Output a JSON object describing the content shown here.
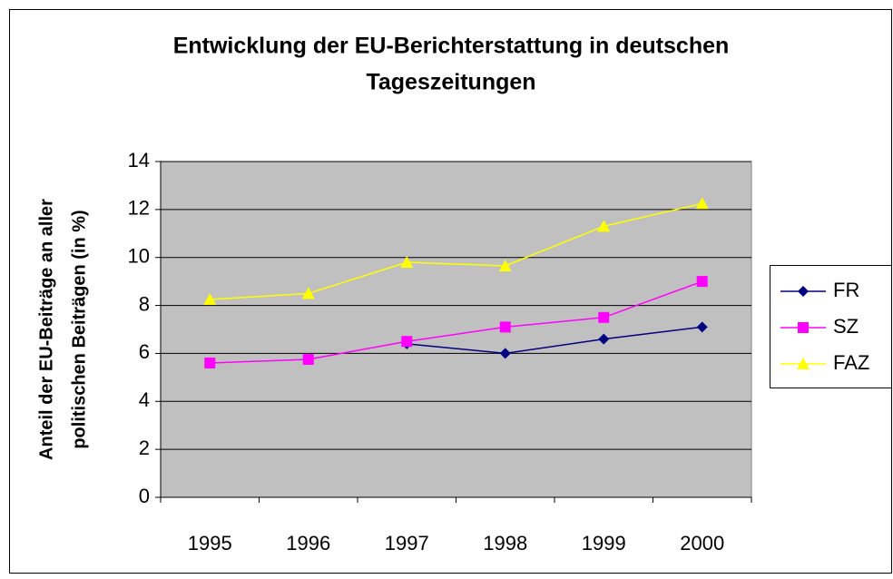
{
  "chart_data": {
    "type": "line",
    "title": [
      "Entwicklung der EU-Berichterstattung in deutschen",
      "Tageszeitungen"
    ],
    "y_label": [
      "Anteil der EU-Beiträge an aller",
      "politischen Beiträgen (in %)"
    ],
    "categories": [
      "1995",
      "1996",
      "1997",
      "1998",
      "1999",
      "2000"
    ],
    "series": [
      {
        "name": "FR",
        "color": "#000080",
        "marker": "diamond",
        "values": [
          null,
          null,
          6.4,
          6.0,
          6.6,
          7.1
        ]
      },
      {
        "name": "SZ",
        "color": "#FF00FF",
        "marker": "square",
        "values": [
          5.6,
          5.75,
          6.5,
          7.1,
          7.5,
          9.0
        ]
      },
      {
        "name": "FAZ",
        "color": "#FFFF00",
        "marker": "triangle",
        "values": [
          8.25,
          8.5,
          9.8,
          9.65,
          11.3,
          12.25
        ]
      }
    ],
    "ylim": [
      0,
      14
    ],
    "yticks": [
      0,
      2,
      4,
      6,
      8,
      10,
      12,
      14
    ],
    "grid": true,
    "legend": "right"
  }
}
